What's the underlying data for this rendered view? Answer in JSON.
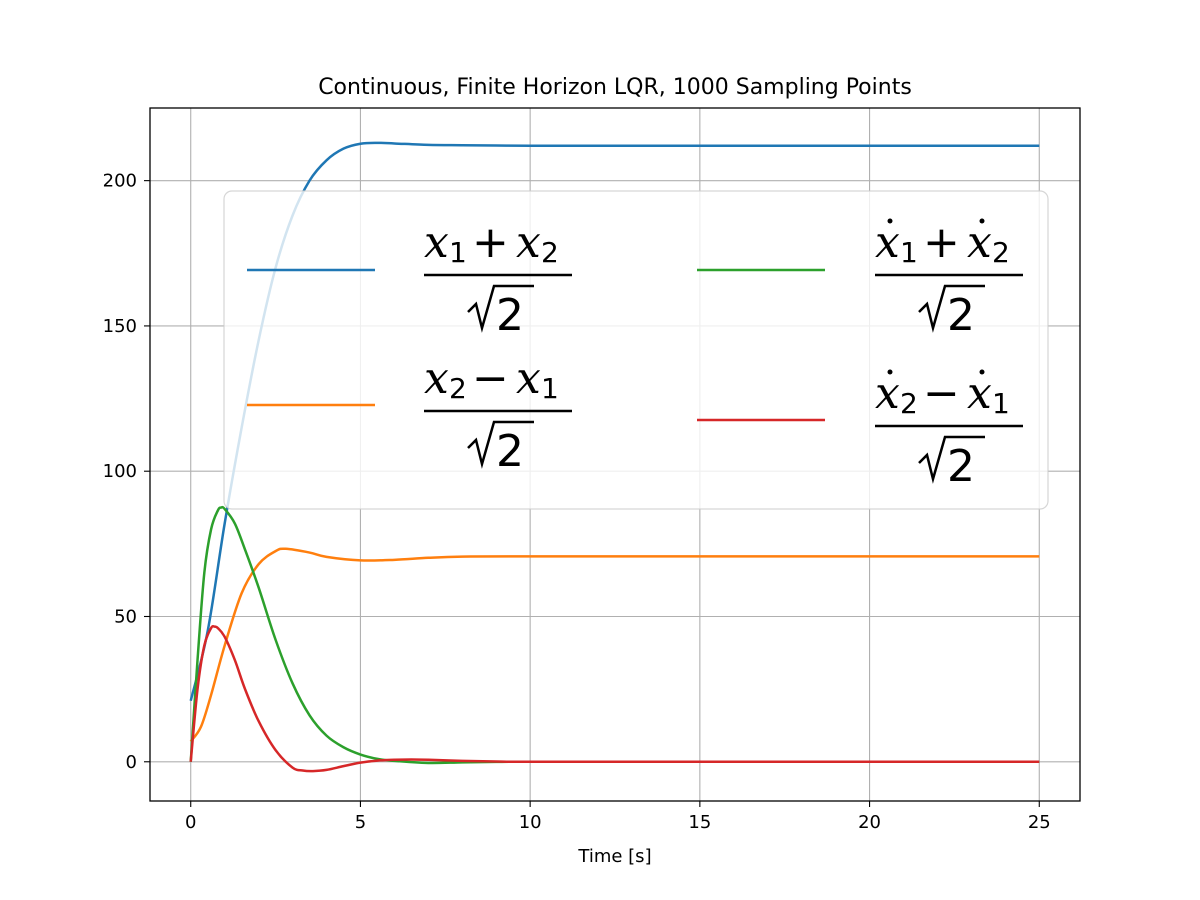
{
  "chart_data": {
    "type": "line",
    "title": "Continuous, Finite Horizon LQR, 1000 Sampling Points",
    "xlabel": "Time [s]",
    "ylabel": "",
    "xlim": [
      -1.2,
      26.2
    ],
    "ylim": [
      -13.5,
      225
    ],
    "xticks": [
      0,
      5,
      10,
      15,
      20,
      25
    ],
    "yticks": [
      0,
      50,
      100,
      150,
      200
    ],
    "grid": true,
    "legend_placement": "upper-center",
    "legend_columns": 2,
    "series": [
      {
        "name": "(x1 + x2) / sqrt(2)",
        "color": "#1f77b4",
        "x": [
          0,
          0.5,
          1,
          1.5,
          2,
          2.5,
          3,
          3.5,
          4,
          4.5,
          5,
          5.5,
          6,
          7,
          8,
          9,
          10,
          12,
          15,
          20,
          25
        ],
        "y": [
          21,
          45,
          82,
          115,
          145,
          170,
          188,
          200,
          207,
          211,
          212.7,
          213,
          212.8,
          212.3,
          212.2,
          212.1,
          212,
          212,
          212,
          212,
          212
        ]
      },
      {
        "name": "(x2 - x1) / sqrt(2)",
        "color": "#ff7f0e",
        "x": [
          0,
          0.3,
          0.6,
          1,
          1.5,
          2,
          2.5,
          2.8,
          3.5,
          4,
          5,
          6,
          7,
          8,
          10,
          15,
          20,
          25
        ],
        "y": [
          7,
          12,
          23,
          40,
          58,
          68,
          72.5,
          73.3,
          72,
          70.5,
          69.3,
          69.5,
          70.2,
          70.6,
          70.7,
          70.7,
          70.7,
          70.7
        ]
      },
      {
        "name": "(x1dot + x2dot) / sqrt(2)",
        "color": "#2ca02c",
        "x": [
          0,
          0.2,
          0.4,
          0.6,
          0.8,
          0.9,
          1.0,
          1.3,
          1.6,
          2,
          2.5,
          3,
          3.5,
          4,
          4.5,
          5,
          5.5,
          6,
          7,
          8,
          9,
          10,
          15,
          20,
          25
        ],
        "y": [
          0,
          35,
          65,
          80,
          86.5,
          87.5,
          87,
          82,
          73,
          60,
          42,
          27,
          16,
          9,
          5,
          2.5,
          1,
          0.3,
          -0.4,
          -0.2,
          -0.05,
          0,
          0,
          0,
          0
        ]
      },
      {
        "name": "(x2dot - x1dot) / sqrt(2)",
        "color": "#d62728",
        "x": [
          0,
          0.2,
          0.4,
          0.6,
          0.7,
          0.8,
          1.0,
          1.3,
          1.6,
          2,
          2.5,
          3,
          3.3,
          3.6,
          4,
          4.5,
          5,
          5.5,
          6,
          6.5,
          7,
          8,
          9,
          10,
          15,
          20,
          25
        ],
        "y": [
          0,
          25,
          40,
          46,
          46.5,
          46,
          43,
          35,
          25,
          14,
          4,
          -2,
          -3,
          -3.2,
          -2.8,
          -1.5,
          -0.3,
          0.4,
          0.7,
          0.8,
          0.7,
          0.3,
          0.1,
          0,
          0,
          0,
          0
        ]
      }
    ]
  }
}
